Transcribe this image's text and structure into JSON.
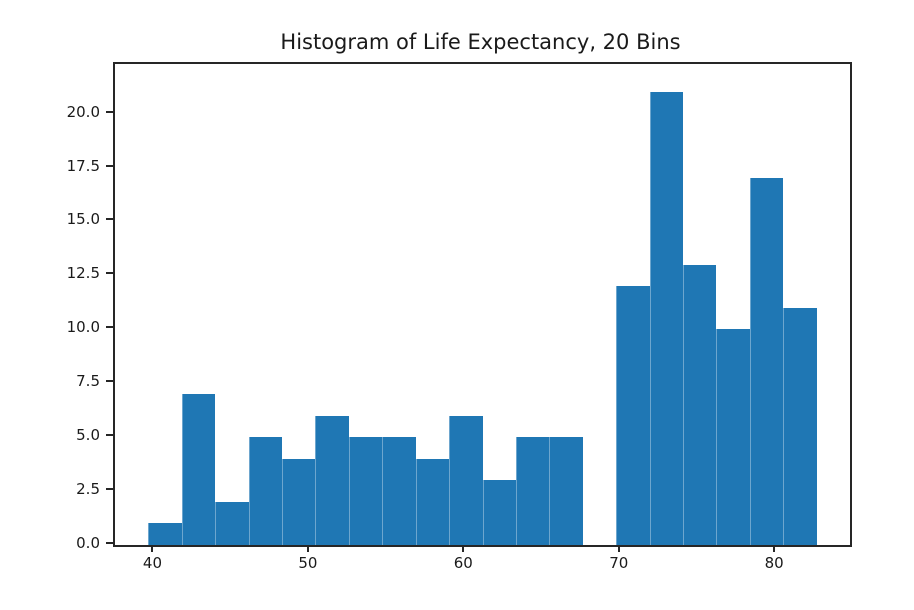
{
  "title": "Histogram of Life Expectancy, 20 Bins",
  "colors": {
    "bar_fill": "#1f77b4",
    "axis": "#262626",
    "text": "#1a1a1a",
    "background": "#ffffff"
  },
  "chart_data": {
    "type": "bar",
    "subtype": "histogram",
    "title": "Histogram of Life Expectancy, 20 Bins",
    "xlabel": "",
    "ylabel": "",
    "grid": false,
    "legend": null,
    "num_bins": 20,
    "bin_edges": [
      39.61,
      41.76,
      43.91,
      46.06,
      48.21,
      50.36,
      52.51,
      54.66,
      56.81,
      58.96,
      61.11,
      63.26,
      65.41,
      67.56,
      69.71,
      71.86,
      74.01,
      76.15,
      78.3,
      80.45,
      82.6
    ],
    "values": [
      1,
      7,
      2,
      5,
      4,
      6,
      5,
      5,
      4,
      6,
      3,
      5,
      5,
      0,
      12,
      21,
      13,
      10,
      17,
      11
    ],
    "x_ticks": [
      40,
      50,
      60,
      70,
      80
    ],
    "x_tick_labels": [
      "40",
      "50",
      "60",
      "70",
      "80"
    ],
    "y_ticks": [
      0,
      2.5,
      5,
      7.5,
      10,
      12.5,
      15,
      17.5,
      20
    ],
    "y_tick_labels": [
      "0.0",
      "2.5",
      "5.0",
      "7.5",
      "10.0",
      "12.5",
      "15.0",
      "17.5",
      "20.0"
    ],
    "xlim": [
      37.46,
      84.75
    ],
    "ylim": [
      0,
      22.3
    ]
  }
}
